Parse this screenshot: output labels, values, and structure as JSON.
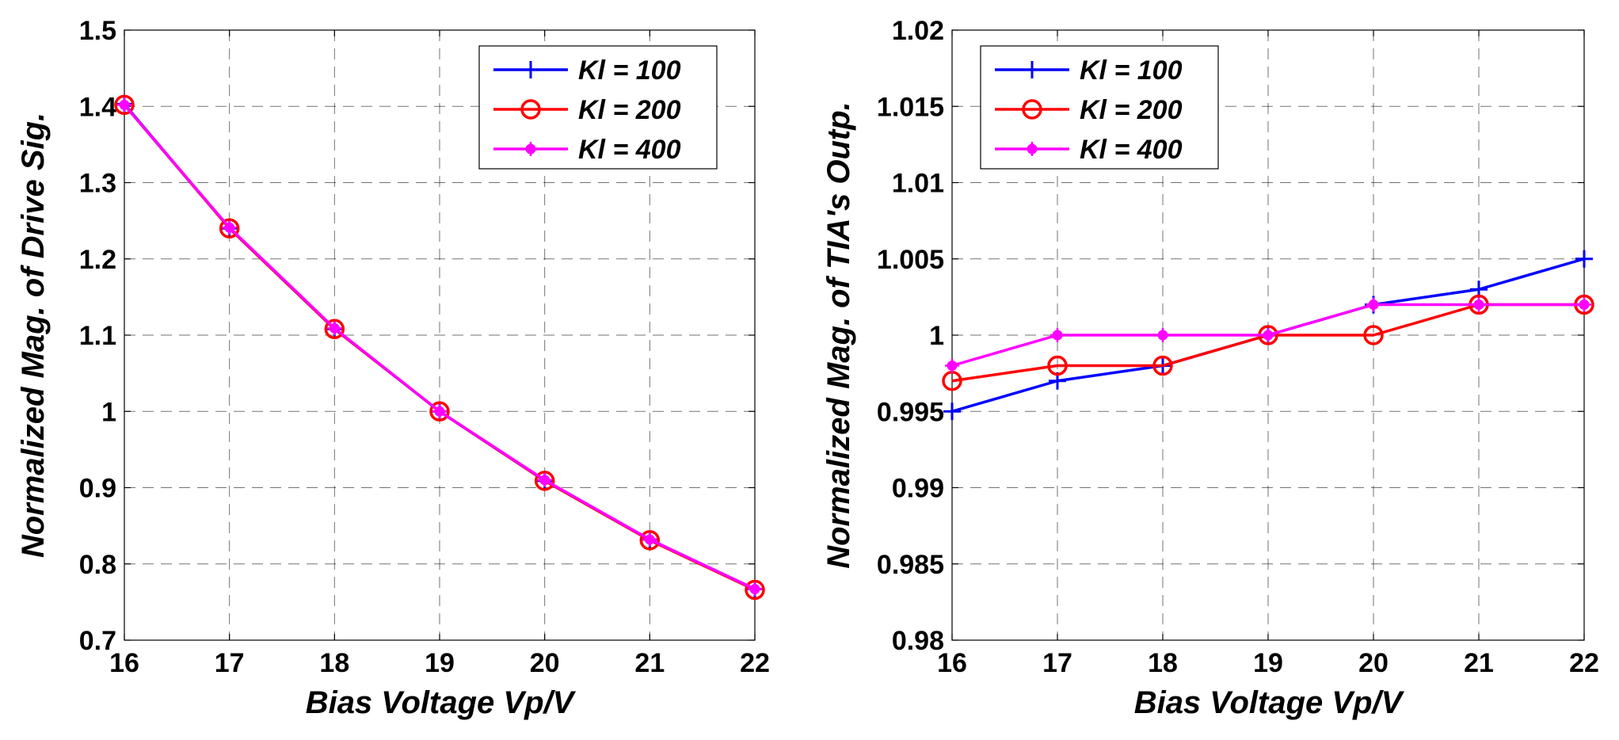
{
  "chart_data": [
    {
      "type": "line",
      "xlabel": "Bias Voltage Vp/V",
      "ylabel": "Normalized Mag. of Drive Sig.",
      "xlim": [
        16,
        22
      ],
      "ylim": [
        0.7,
        1.5
      ],
      "xticks": [
        16,
        17,
        18,
        19,
        20,
        21,
        22
      ],
      "yticks": [
        0.7,
        0.8,
        0.9,
        1.0,
        1.1,
        1.2,
        1.3,
        1.4,
        1.5
      ],
      "xtick_labels": [
        "16",
        "17",
        "18",
        "19",
        "20",
        "21",
        "22"
      ],
      "ytick_labels": [
        "0.7",
        "0.8",
        "0.9",
        "1",
        "1.1",
        "1.2",
        "1.3",
        "1.4",
        "1.5"
      ],
      "grid": true,
      "legend_position": "top-right",
      "x": [
        16,
        17,
        18,
        19,
        20,
        21,
        22
      ],
      "series": [
        {
          "name": "Kl = 100",
          "color": "#0000ff",
          "marker": "plus",
          "values": [
            1.403,
            1.24,
            1.108,
            1.0,
            0.909,
            0.832,
            0.767
          ]
        },
        {
          "name": "Kl = 200",
          "color": "#ff0000",
          "marker": "circle",
          "values": [
            1.402,
            1.24,
            1.108,
            1.0,
            0.909,
            0.831,
            0.766
          ]
        },
        {
          "name": "Kl = 400",
          "color": "#ff00ff",
          "marker": "star",
          "values": [
            1.402,
            1.241,
            1.109,
            1.0,
            0.91,
            0.832,
            0.767
          ]
        }
      ]
    },
    {
      "type": "line",
      "xlabel": "Bias Voltage Vp/V",
      "ylabel": "Normalized Mag. of TIA's Outp.",
      "xlim": [
        16,
        22
      ],
      "ylim": [
        0.98,
        1.02
      ],
      "xticks": [
        16,
        17,
        18,
        19,
        20,
        21,
        22
      ],
      "yticks": [
        0.98,
        0.985,
        0.99,
        0.995,
        1.0,
        1.005,
        1.01,
        1.015,
        1.02
      ],
      "xtick_labels": [
        "16",
        "17",
        "18",
        "19",
        "20",
        "21",
        "22"
      ],
      "ytick_labels": [
        "0.98",
        "0.985",
        "0.99",
        "0.995",
        "1",
        "1.005",
        "1.01",
        "1.015",
        "1.02"
      ],
      "grid": true,
      "legend_position": "top-left",
      "x": [
        16,
        17,
        18,
        19,
        20,
        21,
        22
      ],
      "series": [
        {
          "name": "Kl = 100",
          "color": "#0000ff",
          "marker": "plus",
          "values": [
            0.995,
            0.997,
            0.998,
            1.0,
            1.002,
            1.003,
            1.005
          ]
        },
        {
          "name": "Kl = 200",
          "color": "#ff0000",
          "marker": "circle",
          "values": [
            0.997,
            0.998,
            0.998,
            1.0,
            1.0,
            1.002,
            1.002
          ]
        },
        {
          "name": "Kl = 400",
          "color": "#ff00ff",
          "marker": "star",
          "values": [
            0.998,
            1.0,
            1.0,
            1.0,
            1.002,
            1.002,
            1.002
          ]
        }
      ]
    }
  ]
}
